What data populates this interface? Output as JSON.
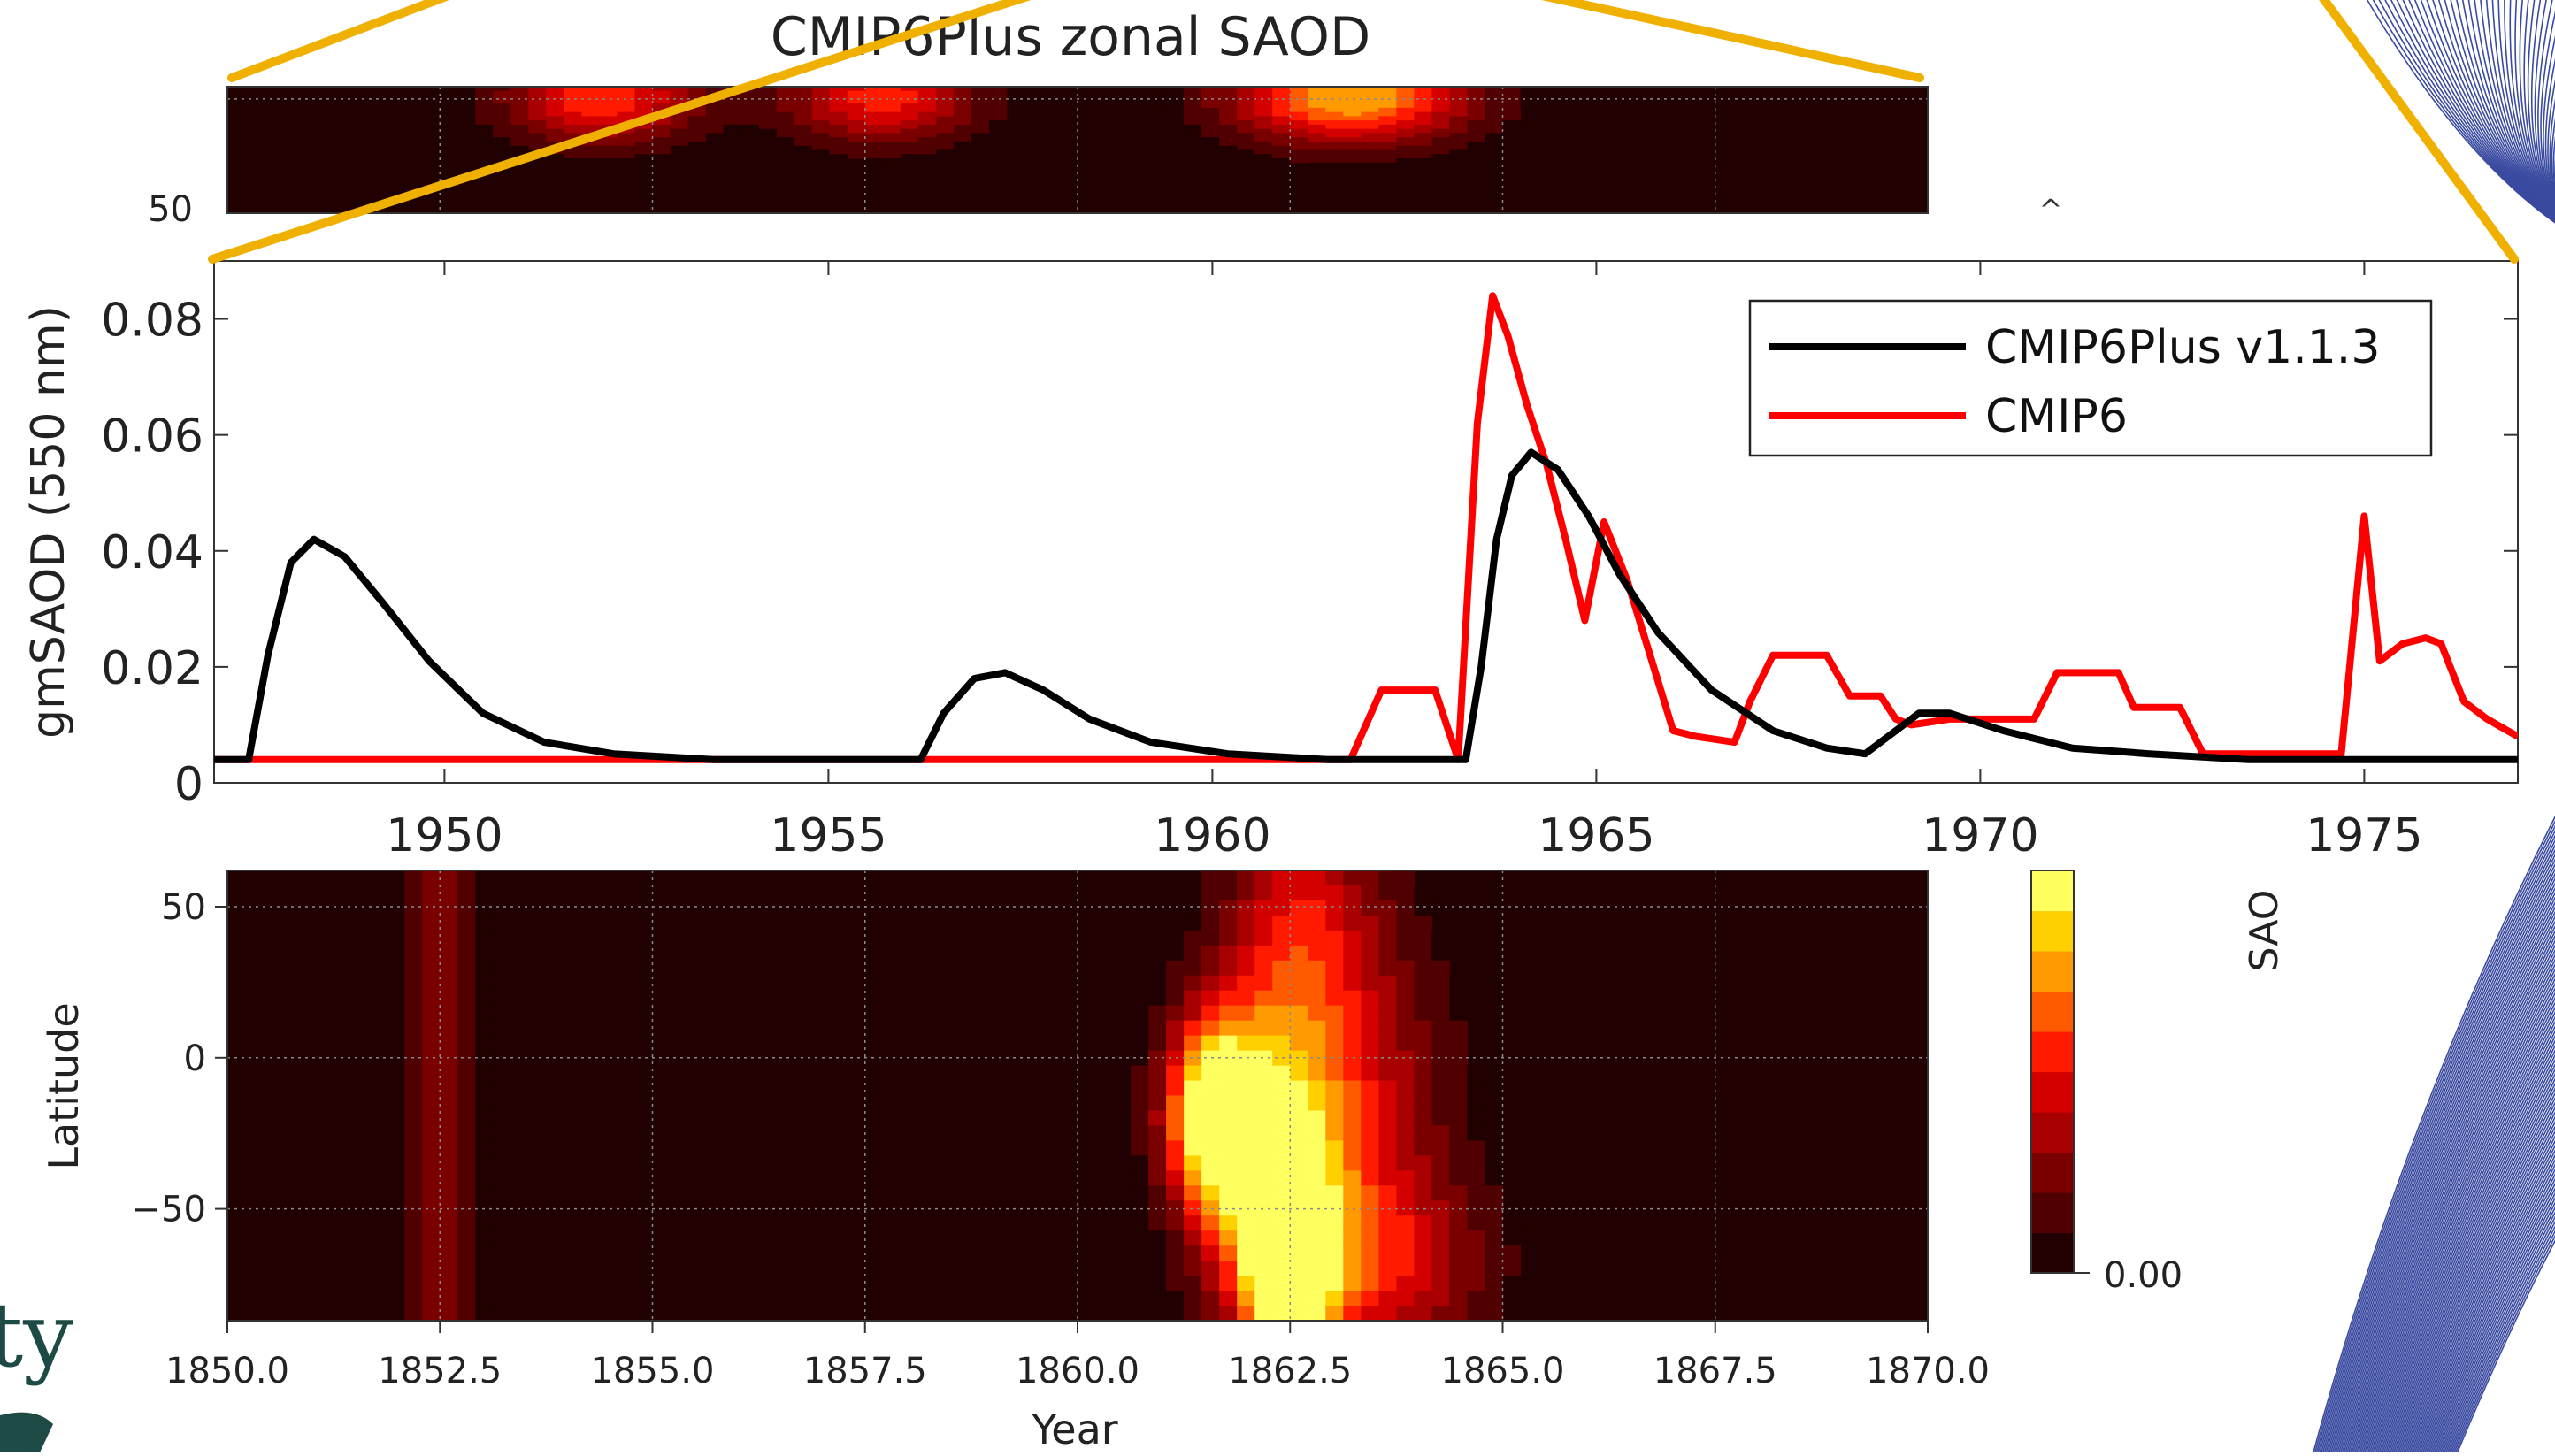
{
  "chart_data": [
    {
      "id": "top_heatmap",
      "type": "heatmap",
      "title": "CMIP6Plus zonal SAOD",
      "xlim": [
        1850,
        1870
      ],
      "ylim": [
        -90,
        65
      ],
      "ytick_labels": [
        "50"
      ],
      "grid": true,
      "colormap": [
        "#200000",
        "#500000",
        "#7a0000",
        "#a80000",
        "#d40000",
        "#ff1a00",
        "#ff5a00",
        "#ff9a00",
        "#ffd000",
        "#ffff60"
      ],
      "blobs": [
        {
          "x": 1854.4,
          "lat": 52,
          "sx": 0.8,
          "slat": 40,
          "v": 0.6
        },
        {
          "x": 1857.7,
          "lat": 52,
          "sx": 0.8,
          "slat": 40,
          "v": 0.55
        },
        {
          "x": 1863.2,
          "lat": 52,
          "sx": 1.0,
          "slat": 40,
          "v": 0.8
        }
      ]
    },
    {
      "id": "line_chart",
      "type": "line",
      "ylabel": "gmSAOD (550 nm)",
      "xlim": [
        1947,
        1977
      ],
      "ylim": [
        0,
        0.09
      ],
      "xticks": [
        1950,
        1955,
        1960,
        1965,
        1970,
        1975
      ],
      "xtick_labels": [
        "1950",
        "1955",
        "1960",
        "1965",
        "1970",
        "1975"
      ],
      "yticks": [
        0,
        0.02,
        0.04,
        0.06,
        0.08
      ],
      "ytick_labels": [
        "0",
        "0.02",
        "0.04",
        "0.06",
        "0.08"
      ],
      "legend_position": "top-right",
      "series": [
        {
          "name": "CMIP6Plus v1.1.3",
          "color": "#000000",
          "x": [
            1947.0,
            1947.45,
            1947.7,
            1948.0,
            1948.3,
            1948.7,
            1949.2,
            1949.8,
            1950.5,
            1951.3,
            1952.2,
            1953.5,
            1955.0,
            1956.2,
            1956.5,
            1956.9,
            1957.3,
            1957.8,
            1958.4,
            1959.2,
            1960.2,
            1961.5,
            1962.5,
            1963.3,
            1963.5,
            1963.7,
            1963.9,
            1964.15,
            1964.5,
            1964.9,
            1965.3,
            1965.8,
            1966.5,
            1967.3,
            1968.0,
            1968.5,
            1968.8,
            1969.2,
            1969.6,
            1970.3,
            1971.2,
            1972.2,
            1973.5,
            1975.0,
            1977.0
          ],
          "y": [
            0.004,
            0.004,
            0.022,
            0.038,
            0.042,
            0.039,
            0.031,
            0.021,
            0.012,
            0.007,
            0.005,
            0.004,
            0.004,
            0.004,
            0.012,
            0.018,
            0.019,
            0.016,
            0.011,
            0.007,
            0.005,
            0.004,
            0.004,
            0.004,
            0.02,
            0.042,
            0.053,
            0.057,
            0.054,
            0.046,
            0.036,
            0.026,
            0.016,
            0.009,
            0.006,
            0.005,
            0.008,
            0.012,
            0.012,
            0.009,
            0.006,
            0.005,
            0.004,
            0.004,
            0.004
          ]
        },
        {
          "name": "CMIP6",
          "color": "#ff0000",
          "x": [
            1947.0,
            1961.8,
            1962.2,
            1962.9,
            1963.2,
            1963.45,
            1963.65,
            1963.85,
            1964.1,
            1964.35,
            1964.6,
            1964.85,
            1965.1,
            1965.4,
            1965.7,
            1966.0,
            1966.3,
            1966.8,
            1967.0,
            1967.3,
            1967.7,
            1968.0,
            1968.3,
            1968.5,
            1968.7,
            1968.9,
            1969.1,
            1969.6,
            1970.0,
            1970.5,
            1970.7,
            1971.0,
            1971.3,
            1971.8,
            1972.0,
            1972.3,
            1972.6,
            1972.9,
            1973.3,
            1973.8,
            1974.3,
            1974.7,
            1975.0,
            1975.2,
            1975.5,
            1975.8,
            1976.0,
            1976.3,
            1976.6,
            1977.0
          ],
          "y": [
            0.004,
            0.004,
            0.016,
            0.016,
            0.004,
            0.062,
            0.084,
            0.077,
            0.065,
            0.055,
            0.042,
            0.028,
            0.045,
            0.035,
            0.022,
            0.009,
            0.008,
            0.007,
            0.014,
            0.022,
            0.022,
            0.022,
            0.015,
            0.015,
            0.015,
            0.011,
            0.01,
            0.011,
            0.011,
            0.011,
            0.011,
            0.019,
            0.019,
            0.019,
            0.013,
            0.013,
            0.013,
            0.005,
            0.005,
            0.005,
            0.005,
            0.005,
            0.046,
            0.021,
            0.024,
            0.025,
            0.024,
            0.014,
            0.011,
            0.008
          ]
        }
      ]
    },
    {
      "id": "bottom_heatmap",
      "type": "heatmap",
      "xlabel": "Year",
      "ylabel": "Latitude",
      "xlim": [
        1850,
        1870
      ],
      "ylim": [
        -87,
        62
      ],
      "xticks": [
        1850,
        1852.5,
        1855,
        1857.5,
        1860,
        1862.5,
        1865,
        1867.5,
        1870
      ],
      "xtick_labels": [
        "1850.0",
        "1852.5",
        "1855.0",
        "1857.5",
        "1860.0",
        "1862.5",
        "1865.0",
        "1867.5",
        "1870.0"
      ],
      "yticks": [
        50,
        0,
        -50
      ],
      "ytick_labels": [
        "50",
        "0",
        "−50"
      ],
      "grid": true,
      "blobs": [
        {
          "x": 1852.5,
          "lat": -10,
          "sx": 0.35,
          "slat": 200,
          "v": 0.26
        },
        {
          "x": 1861.6,
          "lat": -18,
          "sx": 0.4,
          "slat": 22,
          "v": 0.95
        },
        {
          "x": 1862.5,
          "lat": -72,
          "sx": 0.35,
          "slat": 18,
          "v": 0.9
        },
        {
          "x": 1862.3,
          "lat": -40,
          "sx": 0.55,
          "slat": 35,
          "v": 0.65
        },
        {
          "x": 1863.0,
          "lat": -25,
          "sx": 0.9,
          "slat": 50,
          "v": 0.5
        },
        {
          "x": 1862.6,
          "lat": 45,
          "sx": 0.6,
          "slat": 30,
          "v": 0.35
        },
        {
          "x": 1863.8,
          "lat": -70,
          "sx": 0.8,
          "slat": 20,
          "v": 0.3
        }
      ]
    },
    {
      "id": "colorbar",
      "type": "colorbar",
      "tick_label": "0.00",
      "label": "SAO"
    }
  ],
  "colors": {
    "callout_lines": "#f0b000",
    "deco_lines": "#3a4aa0",
    "logo_text": "#1d4a44"
  },
  "logo_fragment": "ty"
}
